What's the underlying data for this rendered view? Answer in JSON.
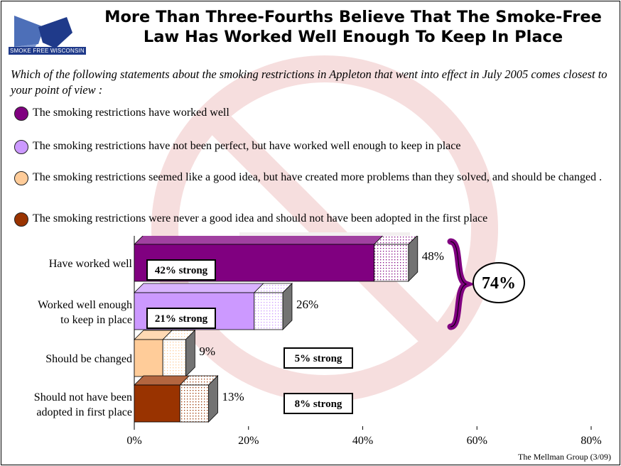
{
  "title": "More Than Three-Fourths Believe That The Smoke-Free Law Has Worked Well Enough To Keep In Place",
  "logo": {
    "text": "SMOKE FREE WISCONSIN"
  },
  "question": "Which of the following statements about the smoking restrictions in Appleton that went into effect in July 2005 comes closest to your point of view :",
  "legend": [
    {
      "label": "The smoking restrictions have worked well",
      "color": "#800080"
    },
    {
      "label": "The smoking restrictions have not been perfect, but have worked well enough to keep in place",
      "color": "#cc99ff"
    },
    {
      "label": "The smoking restrictions seemed like a good idea, but have created more problems than they solved, and should be changed .",
      "color": "#ffcc99"
    },
    {
      "label": "The smoking restrictions were never a good idea and should not have been adopted in the first place",
      "color": "#993300"
    }
  ],
  "chart_data": {
    "type": "bar",
    "orientation": "horizontal",
    "stacked": true,
    "categories": [
      [
        "Have worked well"
      ],
      [
        "Worked well enough",
        "to keep in place"
      ],
      [
        "Should be changed"
      ],
      [
        "Should not have been",
        "adopted in first place"
      ]
    ],
    "strong": [
      42,
      21,
      5,
      8
    ],
    "totals": [
      48,
      26,
      9,
      13
    ],
    "total_labels": [
      "48%",
      "26%",
      "9%",
      "13%"
    ],
    "strong_labels": [
      "42% strong",
      "21% strong",
      "5% strong",
      "8% strong"
    ],
    "colors": [
      "#800080",
      "#cc99ff",
      "#ffcc99",
      "#993300"
    ],
    "xlim": [
      0,
      80
    ],
    "xticks": [
      0,
      20,
      40,
      60,
      80
    ],
    "xtick_labels": [
      "0%",
      "20%",
      "40%",
      "60%",
      "80%"
    ],
    "bracket_label": "74%"
  },
  "source": "The Mellman Group (3/09)"
}
